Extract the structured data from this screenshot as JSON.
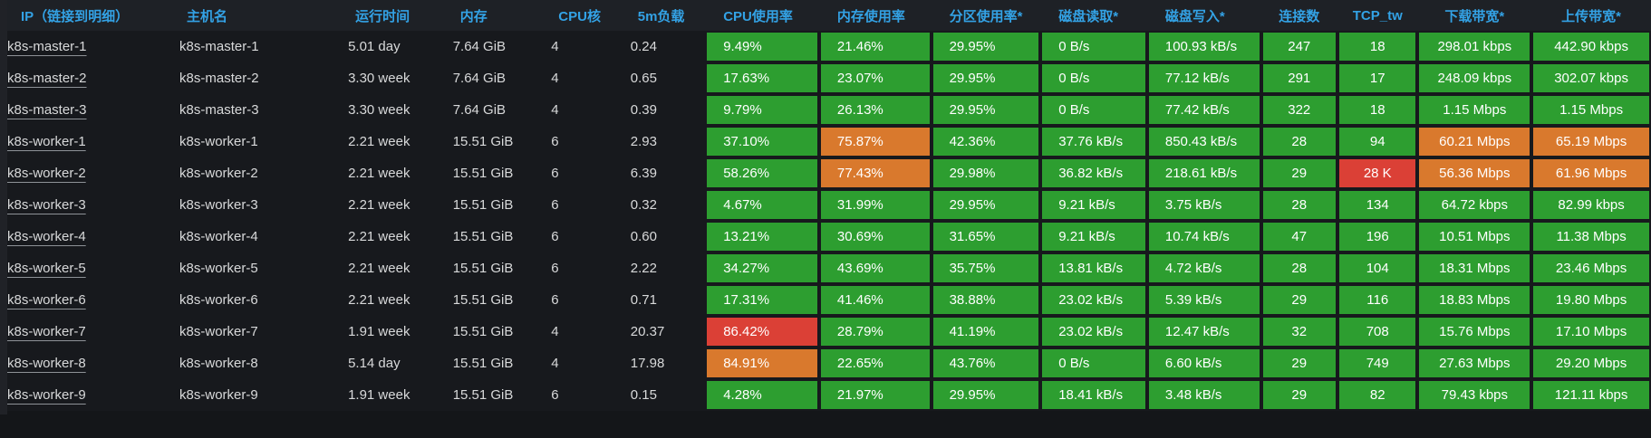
{
  "colors": {
    "green": "#2d9e30",
    "orange": "#d9792d",
    "red": "#db4036",
    "header_text": "#33a2e5",
    "cell_text": "#d8d9da",
    "metric_text": "#ffffff",
    "page_bg": "#141619",
    "header_bg": "#1e2126",
    "row_bg": "#17191d"
  },
  "table": {
    "columns": [
      {
        "id": "ip",
        "label": "IP（链接到明细）"
      },
      {
        "id": "hostname",
        "label": "主机名"
      },
      {
        "id": "uptime",
        "label": "运行时间"
      },
      {
        "id": "memory",
        "label": "内存"
      },
      {
        "id": "cores",
        "label": "CPU核"
      },
      {
        "id": "load5m",
        "label": "5m负载"
      },
      {
        "id": "cpu_usage",
        "label": "CPU使用率"
      },
      {
        "id": "mem_usage",
        "label": "内存使用率"
      },
      {
        "id": "partition_usage",
        "label": "分区使用率*"
      },
      {
        "id": "disk_read",
        "label": "磁盘读取*"
      },
      {
        "id": "disk_write",
        "label": "磁盘写入*"
      },
      {
        "id": "connections",
        "label": "连接数"
      },
      {
        "id": "tcp_tw",
        "label": "TCP_tw"
      },
      {
        "id": "download_bw",
        "label": "下载带宽*"
      },
      {
        "id": "upload_bw",
        "label": "上传带宽*"
      }
    ],
    "rows": [
      {
        "ip": "k8s-master-1",
        "hostname": "k8s-master-1",
        "uptime": "5.01 day",
        "memory": "7.64 GiB",
        "cores": "4",
        "load5m": "0.24",
        "metrics": [
          [
            "9.49%",
            "green"
          ],
          [
            "21.46%",
            "green"
          ],
          [
            "29.95%",
            "green"
          ],
          [
            "0 B/s",
            "green"
          ],
          [
            "100.93 kB/s",
            "green"
          ],
          [
            "247",
            "green"
          ],
          [
            "18",
            "green"
          ],
          [
            "298.01 kbps",
            "green"
          ],
          [
            "442.90 kbps",
            "green"
          ]
        ]
      },
      {
        "ip": "k8s-master-2",
        "hostname": "k8s-master-2",
        "uptime": "3.30 week",
        "memory": "7.64 GiB",
        "cores": "4",
        "load5m": "0.65",
        "metrics": [
          [
            "17.63%",
            "green"
          ],
          [
            "23.07%",
            "green"
          ],
          [
            "29.95%",
            "green"
          ],
          [
            "0 B/s",
            "green"
          ],
          [
            "77.12 kB/s",
            "green"
          ],
          [
            "291",
            "green"
          ],
          [
            "17",
            "green"
          ],
          [
            "248.09 kbps",
            "green"
          ],
          [
            "302.07 kbps",
            "green"
          ]
        ]
      },
      {
        "ip": "k8s-master-3",
        "hostname": "k8s-master-3",
        "uptime": "3.30 week",
        "memory": "7.64 GiB",
        "cores": "4",
        "load5m": "0.39",
        "metrics": [
          [
            "9.79%",
            "green"
          ],
          [
            "26.13%",
            "green"
          ],
          [
            "29.95%",
            "green"
          ],
          [
            "0 B/s",
            "green"
          ],
          [
            "77.42 kB/s",
            "green"
          ],
          [
            "322",
            "green"
          ],
          [
            "18",
            "green"
          ],
          [
            "1.15 Mbps",
            "green"
          ],
          [
            "1.15 Mbps",
            "green"
          ]
        ]
      },
      {
        "ip": "k8s-worker-1",
        "hostname": "k8s-worker-1",
        "uptime": "2.21 week",
        "memory": "15.51 GiB",
        "cores": "6",
        "load5m": "2.93",
        "metrics": [
          [
            "37.10%",
            "green"
          ],
          [
            "75.87%",
            "orange"
          ],
          [
            "42.36%",
            "green"
          ],
          [
            "37.76 kB/s",
            "green"
          ],
          [
            "850.43 kB/s",
            "green"
          ],
          [
            "28",
            "green"
          ],
          [
            "94",
            "green"
          ],
          [
            "60.21 Mbps",
            "orange"
          ],
          [
            "65.19 Mbps",
            "orange"
          ]
        ]
      },
      {
        "ip": "k8s-worker-2",
        "hostname": "k8s-worker-2",
        "uptime": "2.21 week",
        "memory": "15.51 GiB",
        "cores": "6",
        "load5m": "6.39",
        "metrics": [
          [
            "58.26%",
            "green"
          ],
          [
            "77.43%",
            "orange"
          ],
          [
            "29.98%",
            "green"
          ],
          [
            "36.82 kB/s",
            "green"
          ],
          [
            "218.61 kB/s",
            "green"
          ],
          [
            "29",
            "green"
          ],
          [
            "28 K",
            "red"
          ],
          [
            "56.36 Mbps",
            "orange"
          ],
          [
            "61.96 Mbps",
            "orange"
          ]
        ]
      },
      {
        "ip": "k8s-worker-3",
        "hostname": "k8s-worker-3",
        "uptime": "2.21 week",
        "memory": "15.51 GiB",
        "cores": "6",
        "load5m": "0.32",
        "metrics": [
          [
            "4.67%",
            "green"
          ],
          [
            "31.99%",
            "green"
          ],
          [
            "29.95%",
            "green"
          ],
          [
            "9.21 kB/s",
            "green"
          ],
          [
            "3.75 kB/s",
            "green"
          ],
          [
            "28",
            "green"
          ],
          [
            "134",
            "green"
          ],
          [
            "64.72 kbps",
            "green"
          ],
          [
            "82.99 kbps",
            "green"
          ]
        ]
      },
      {
        "ip": "k8s-worker-4",
        "hostname": "k8s-worker-4",
        "uptime": "2.21 week",
        "memory": "15.51 GiB",
        "cores": "6",
        "load5m": "0.60",
        "metrics": [
          [
            "13.21%",
            "green"
          ],
          [
            "30.69%",
            "green"
          ],
          [
            "31.65%",
            "green"
          ],
          [
            "9.21 kB/s",
            "green"
          ],
          [
            "10.74 kB/s",
            "green"
          ],
          [
            "47",
            "green"
          ],
          [
            "196",
            "green"
          ],
          [
            "10.51 Mbps",
            "green"
          ],
          [
            "11.38 Mbps",
            "green"
          ]
        ]
      },
      {
        "ip": "k8s-worker-5",
        "hostname": "k8s-worker-5",
        "uptime": "2.21 week",
        "memory": "15.51 GiB",
        "cores": "6",
        "load5m": "2.22",
        "metrics": [
          [
            "34.27%",
            "green"
          ],
          [
            "43.69%",
            "green"
          ],
          [
            "35.75%",
            "green"
          ],
          [
            "13.81 kB/s",
            "green"
          ],
          [
            "4.72 kB/s",
            "green"
          ],
          [
            "28",
            "green"
          ],
          [
            "104",
            "green"
          ],
          [
            "18.31 Mbps",
            "green"
          ],
          [
            "23.46 Mbps",
            "green"
          ]
        ]
      },
      {
        "ip": "k8s-worker-6",
        "hostname": "k8s-worker-6",
        "uptime": "2.21 week",
        "memory": "15.51 GiB",
        "cores": "6",
        "load5m": "0.71",
        "metrics": [
          [
            "17.31%",
            "green"
          ],
          [
            "41.46%",
            "green"
          ],
          [
            "38.88%",
            "green"
          ],
          [
            "23.02 kB/s",
            "green"
          ],
          [
            "5.39 kB/s",
            "green"
          ],
          [
            "29",
            "green"
          ],
          [
            "116",
            "green"
          ],
          [
            "18.83 Mbps",
            "green"
          ],
          [
            "19.80 Mbps",
            "green"
          ]
        ]
      },
      {
        "ip": "k8s-worker-7",
        "hostname": "k8s-worker-7",
        "uptime": "1.91 week",
        "memory": "15.51 GiB",
        "cores": "4",
        "load5m": "20.37",
        "metrics": [
          [
            "86.42%",
            "red"
          ],
          [
            "28.79%",
            "green"
          ],
          [
            "41.19%",
            "green"
          ],
          [
            "23.02 kB/s",
            "green"
          ],
          [
            "12.47 kB/s",
            "green"
          ],
          [
            "32",
            "green"
          ],
          [
            "708",
            "green"
          ],
          [
            "15.76 Mbps",
            "green"
          ],
          [
            "17.10 Mbps",
            "green"
          ]
        ]
      },
      {
        "ip": "k8s-worker-8",
        "hostname": "k8s-worker-8",
        "uptime": "5.14 day",
        "memory": "15.51 GiB",
        "cores": "4",
        "load5m": "17.98",
        "metrics": [
          [
            "84.91%",
            "orange"
          ],
          [
            "22.65%",
            "green"
          ],
          [
            "43.76%",
            "green"
          ],
          [
            "0 B/s",
            "green"
          ],
          [
            "6.60 kB/s",
            "green"
          ],
          [
            "29",
            "green"
          ],
          [
            "749",
            "green"
          ],
          [
            "27.63 Mbps",
            "green"
          ],
          [
            "29.20 Mbps",
            "green"
          ]
        ]
      },
      {
        "ip": "k8s-worker-9",
        "hostname": "k8s-worker-9",
        "uptime": "1.91 week",
        "memory": "15.51 GiB",
        "cores": "6",
        "load5m": "0.15",
        "metrics": [
          [
            "4.28%",
            "green"
          ],
          [
            "21.97%",
            "green"
          ],
          [
            "29.95%",
            "green"
          ],
          [
            "18.41 kB/s",
            "green"
          ],
          [
            "3.48 kB/s",
            "green"
          ],
          [
            "29",
            "green"
          ],
          [
            "82",
            "green"
          ],
          [
            "79.43 kbps",
            "green"
          ],
          [
            "121.11 kbps",
            "green"
          ]
        ]
      }
    ]
  }
}
